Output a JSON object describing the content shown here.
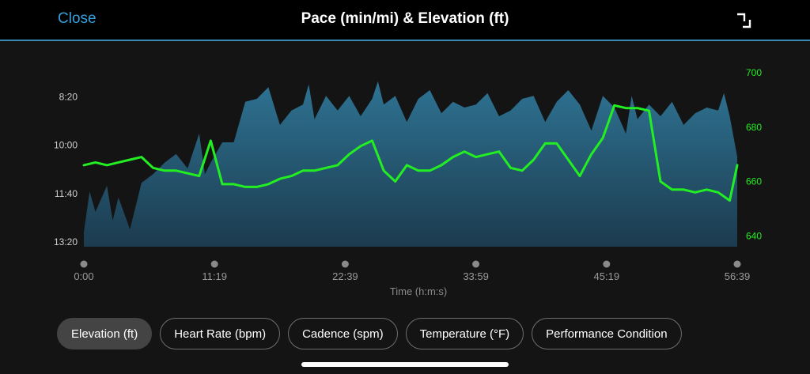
{
  "header": {
    "close_label": "Close",
    "title": "Pace (min/mi) & Elevation (ft)",
    "expand_icon": "expand-icon"
  },
  "colors": {
    "header_bg": "#000000",
    "accent": "#35a0db",
    "pace_fill_top": "#2b6a88",
    "pace_fill_bottom": "#1c3c50",
    "elevation_line": "#22ee22"
  },
  "chart_data": {
    "type": "area+line",
    "title": "Pace (min/mi) & Elevation (ft)",
    "xlabel": "Time (h:m:s)",
    "x_ticks": [
      "0:00",
      "11:19",
      "22:39",
      "33:59",
      "45:19",
      "56:39"
    ],
    "x_range_minutes": [
      0,
      56.65
    ],
    "pace_axis": {
      "label": "Pace (min/mi)",
      "ticks": [
        "8:20",
        "10:00",
        "11:40",
        "13:20"
      ],
      "tick_minutes": [
        8.333,
        10.0,
        11.667,
        13.333
      ],
      "range_minutes": [
        7.5,
        13.5
      ],
      "inverted": true
    },
    "elevation_axis": {
      "label": "Elevation (ft)",
      "ticks": [
        "700",
        "680",
        "660",
        "640"
      ],
      "range_ft": [
        636,
        700
      ]
    },
    "series": [
      {
        "name": "Pace",
        "kind": "area",
        "x": [
          0,
          0.5,
          1,
          2,
          2.5,
          3,
          4,
          5,
          6,
          7,
          8,
          9,
          10,
          10.5,
          11,
          12,
          13,
          14,
          15,
          16,
          17,
          18,
          19,
          19.5,
          20,
          21,
          22,
          23,
          24,
          25,
          25.5,
          26,
          27,
          28,
          29,
          30,
          31,
          32,
          33,
          34,
          35,
          36,
          37,
          38,
          39,
          40,
          41,
          42,
          43,
          44,
          45,
          46,
          47,
          47.5,
          48,
          49,
          50,
          51,
          52,
          53,
          54,
          55,
          55.5,
          56,
          56.65
        ],
        "values": [
          13.0,
          11.6,
          12.3,
          11.4,
          12.6,
          11.8,
          12.9,
          11.3,
          11.0,
          10.6,
          10.3,
          10.8,
          9.6,
          11.0,
          10.6,
          9.9,
          9.9,
          8.5,
          8.4,
          8.0,
          9.3,
          8.8,
          8.6,
          7.9,
          9.1,
          8.3,
          8.8,
          8.3,
          9.0,
          8.4,
          7.8,
          8.6,
          8.3,
          9.2,
          8.4,
          8.1,
          8.9,
          8.5,
          8.7,
          8.6,
          8.2,
          9.0,
          8.8,
          8.4,
          8.3,
          9.2,
          8.5,
          8.1,
          8.6,
          9.5,
          8.3,
          8.7,
          9.6,
          8.3,
          9.1,
          8.6,
          9.0,
          8.5,
          9.3,
          8.9,
          8.7,
          8.8,
          8.2,
          9.0,
          10.4
        ]
      },
      {
        "name": "Elevation",
        "kind": "line",
        "x": [
          0,
          1,
          2,
          3,
          4,
          5,
          6,
          7,
          8,
          9,
          10,
          11,
          12,
          13,
          14,
          15,
          16,
          17,
          18,
          19,
          20,
          21,
          22,
          23,
          24,
          25,
          26,
          27,
          28,
          29,
          30,
          31,
          32,
          33,
          34,
          35,
          36,
          37,
          38,
          39,
          40,
          41,
          42,
          43,
          44,
          45,
          46,
          47,
          48,
          49,
          50,
          51,
          52,
          53,
          54,
          55,
          56,
          56.65
        ],
        "values": [
          666,
          667,
          666,
          667,
          668,
          669,
          665,
          664,
          664,
          663,
          662,
          675,
          659,
          659,
          658,
          658,
          659,
          661,
          662,
          664,
          664,
          665,
          666,
          670,
          673,
          675,
          664,
          660,
          666,
          664,
          664,
          666,
          669,
          671,
          669,
          670,
          671,
          665,
          664,
          668,
          674,
          674,
          668,
          662,
          670,
          676,
          688,
          687,
          687,
          686,
          660,
          657,
          657,
          656,
          657,
          656,
          653,
          666
        ]
      }
    ]
  },
  "pills": [
    {
      "label": "Elevation (ft)",
      "active": true
    },
    {
      "label": "Heart Rate (bpm)",
      "active": false
    },
    {
      "label": "Cadence (spm)",
      "active": false
    },
    {
      "label": "Temperature (°F)",
      "active": false
    },
    {
      "label": "Performance Condition",
      "active": false
    }
  ]
}
